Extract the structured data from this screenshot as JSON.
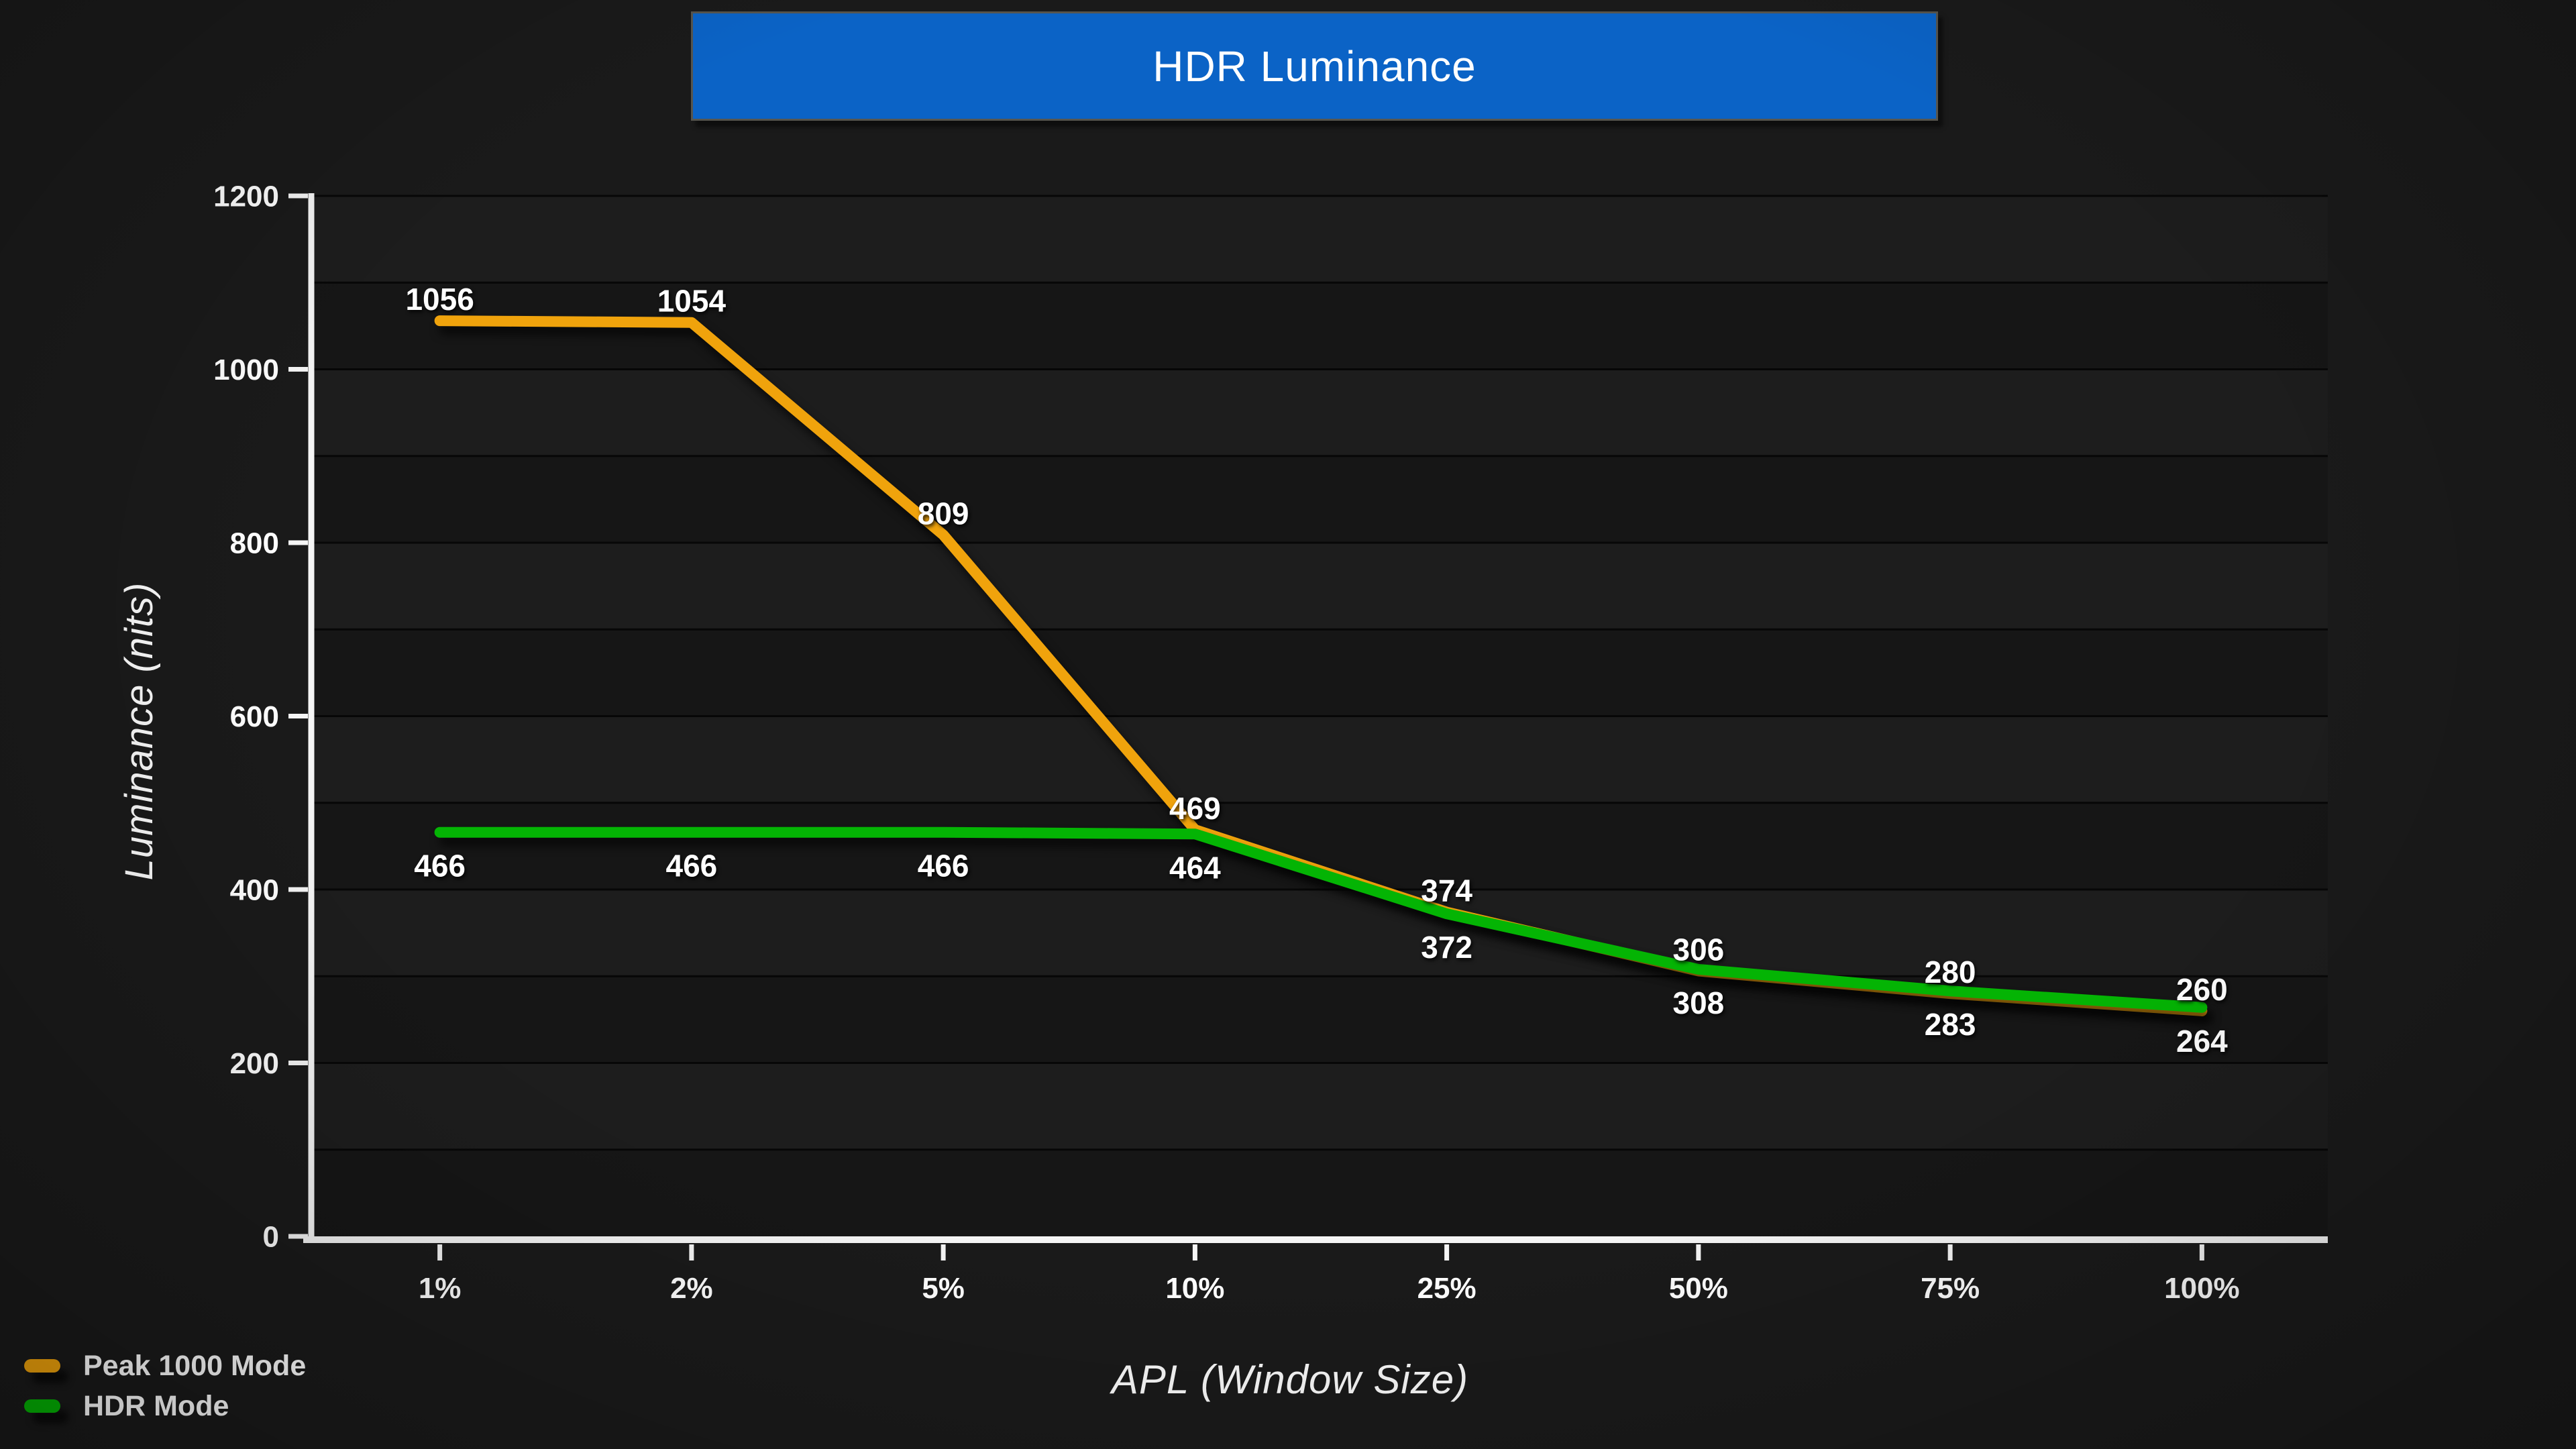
{
  "title": {
    "text": "HDR Luminance"
  },
  "colors": {
    "background": "#1A1A1A",
    "title_bg": "#0B63C6",
    "title_border": "#56554E",
    "band_dark": "#161616",
    "band_light": "#1D1D1D",
    "gridline": "#070707",
    "axis": "#F5F5F5",
    "label_text": "#FFFFFF",
    "peak_series": "#F0A30C",
    "hdr_series": "#04B404"
  },
  "axes": {
    "y": {
      "title": "Luminance (nits)",
      "min": 0,
      "max": 1200,
      "tick_step": 200,
      "tick_labels": [
        "0",
        "200",
        "400",
        "600",
        "800",
        "1000",
        "1200"
      ]
    },
    "x": {
      "title": "APL (Window Size)",
      "tick_labels": [
        "1%",
        "2%",
        "5%",
        "10%",
        "25%",
        "50%",
        "75%",
        "100%"
      ]
    }
  },
  "legend": {
    "items": [
      {
        "label": "Peak 1000 Mode",
        "color": "#F0A30C"
      },
      {
        "label": "HDR Mode",
        "color": "#04B404"
      }
    ]
  },
  "chart_data": {
    "type": "line",
    "title": "HDR Luminance",
    "xlabel": "APL (Window Size)",
    "ylabel": "Luminance (nits)",
    "categories": [
      "1%",
      "2%",
      "5%",
      "10%",
      "25%",
      "50%",
      "75%",
      "100%"
    ],
    "series": [
      {
        "name": "Peak 1000 Mode",
        "color": "#F0A30C",
        "values": [
          1056,
          1054,
          809,
          469,
          374,
          306,
          280,
          260
        ],
        "label_position": "above"
      },
      {
        "name": "HDR Mode",
        "color": "#04B404",
        "values": [
          466,
          466,
          466,
          464,
          372,
          308,
          283,
          264
        ],
        "label_position": "below"
      }
    ],
    "ylim": [
      0,
      1200
    ],
    "grid": "horizontal gridlines every 100 nits with alternating shaded bands",
    "legend_position": "bottom-left"
  }
}
